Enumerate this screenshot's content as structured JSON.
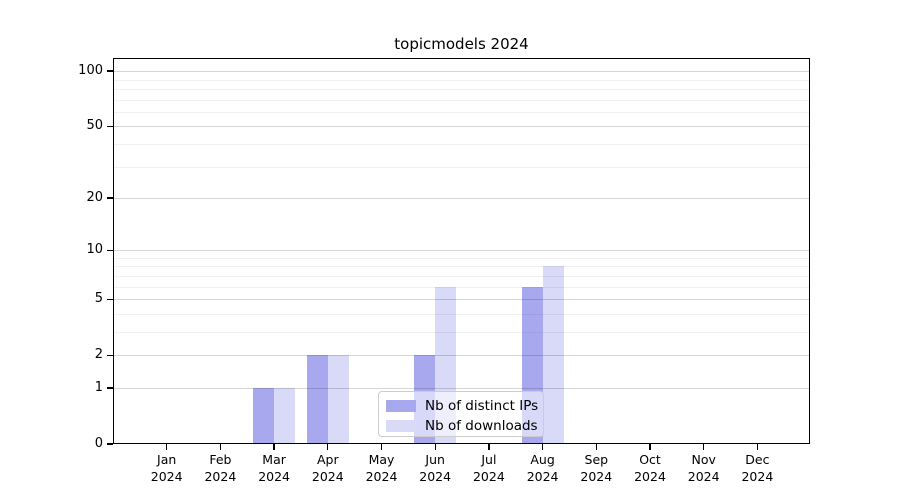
{
  "title": "topicmodels 2024",
  "legend": {
    "items": [
      {
        "label": "Nb of distinct IPs",
        "color": "#a8a8ef"
      },
      {
        "label": "Nb of downloads",
        "color": "#d9d9f8"
      }
    ]
  },
  "chart_data": {
    "type": "bar",
    "title": "topicmodels 2024",
    "categories": [
      "Jan",
      "Feb",
      "Mar",
      "Apr",
      "May",
      "Jun",
      "Jul",
      "Aug",
      "Sep",
      "Oct",
      "Nov",
      "Dec"
    ],
    "category_year": "2024",
    "series": [
      {
        "name": "Nb of distinct IPs",
        "color": "#a8a8ef",
        "values": [
          0,
          0,
          1,
          2,
          0,
          2,
          0,
          6,
          0,
          0,
          0,
          0
        ]
      },
      {
        "name": "Nb of downloads",
        "color": "#d9d9f8",
        "values": [
          0,
          0,
          1,
          2,
          0,
          6,
          0,
          8,
          0,
          0,
          0,
          0
        ]
      }
    ],
    "yscale": "log1p",
    "ylim": [
      0,
      118
    ],
    "y_major_ticks": [
      0,
      1,
      2,
      5,
      10,
      20,
      50,
      100
    ],
    "y_minor_gridlines": [
      3,
      4,
      6,
      7,
      8,
      9,
      30,
      40,
      60,
      70,
      80,
      90
    ],
    "grid": true,
    "legend_position": "lower center inside",
    "axis_color": "#000000",
    "grid_major_color": "#d6d6d6",
    "grid_minor_color": "#f0f0f0",
    "background_color": "#ffffff"
  }
}
